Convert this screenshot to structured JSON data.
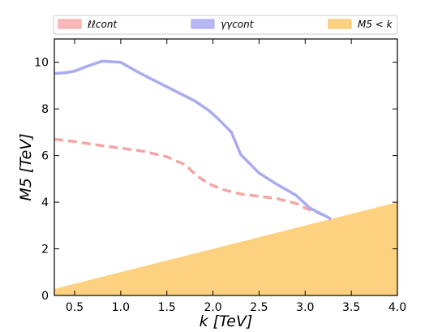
{
  "chart_data": {
    "type": "line",
    "xlabel": "k [TeV]",
    "ylabel": "M5 [TeV]",
    "xlim": [
      0.28,
      4.0
    ],
    "ylim": [
      0,
      11
    ],
    "xticks": [
      0.5,
      1.0,
      1.5,
      2.0,
      2.5,
      3.0,
      3.5,
      4.0
    ],
    "xtick_labels": [
      "0.5",
      "1.0",
      "1.5",
      "2.0",
      "2.5",
      "3.0",
      "3.5",
      "4.0"
    ],
    "yticks": [
      0,
      2,
      4,
      6,
      8,
      10
    ],
    "ytick_labels": [
      "0",
      "2",
      "4",
      "6",
      "8",
      "10"
    ],
    "grid": false,
    "legend_placement": "top",
    "series": [
      {
        "name": "ℓℓcont",
        "style": "dashed",
        "color": "#f4a6a6",
        "x": [
          0.28,
          0.5,
          0.8,
          1.0,
          1.25,
          1.5,
          1.7,
          1.82,
          1.95,
          2.1,
          2.3,
          2.5,
          2.7,
          2.9,
          3.0,
          3.2,
          3.28
        ],
        "y": [
          6.7,
          6.6,
          6.42,
          6.32,
          6.18,
          5.95,
          5.6,
          5.15,
          4.8,
          4.55,
          4.35,
          4.25,
          4.15,
          3.95,
          3.75,
          3.45,
          3.28
        ]
      },
      {
        "name": "γγcont",
        "style": "solid",
        "color": "#aaaaf2",
        "x": [
          0.28,
          0.4,
          0.5,
          0.65,
          0.8,
          1.0,
          1.2,
          1.5,
          1.8,
          1.95,
          2.05,
          2.2,
          2.3,
          2.5,
          2.7,
          2.9,
          3.05,
          3.2,
          3.28
        ],
        "y": [
          9.52,
          9.55,
          9.62,
          9.85,
          10.05,
          10.0,
          9.55,
          8.95,
          8.35,
          7.95,
          7.6,
          7.0,
          6.05,
          5.25,
          4.75,
          4.3,
          3.75,
          3.45,
          3.28
        ]
      },
      {
        "name": "M5 < k",
        "style": "filled",
        "color": "#fdd17f",
        "x": [
          0.28,
          4.0
        ],
        "y": [
          0.28,
          4.0
        ]
      }
    ]
  }
}
